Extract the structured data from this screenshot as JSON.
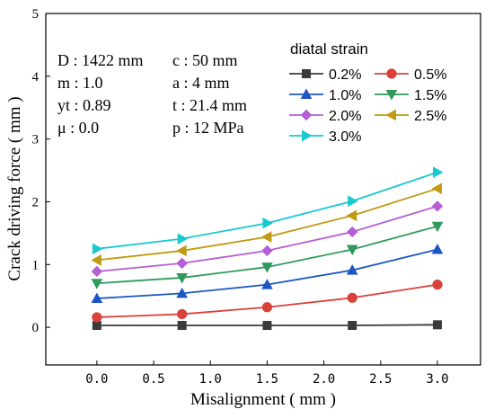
{
  "chart_data": {
    "type": "line",
    "xlabel": "Misalignment ( mm )",
    "ylabel": "Crack driving force ( mm )",
    "xlim": [
      -0.45,
      3.38
    ],
    "ylim": [
      -0.6,
      5
    ],
    "xticks": [
      0.0,
      0.5,
      1.0,
      1.5,
      2.0,
      2.5,
      3.0
    ],
    "xtick_labels": [
      "0.0",
      "0.5",
      "1.0",
      "1.5",
      "2.0",
      "2.5",
      "3.0"
    ],
    "yticks": [
      0,
      1,
      2,
      3,
      4,
      5
    ],
    "ytick_labels": [
      "0",
      "1",
      "2",
      "3",
      "4",
      "5"
    ],
    "x": [
      0.0,
      0.75,
      1.5,
      2.25,
      3.0
    ],
    "legend": {
      "title": "diatal strain",
      "placement": "top-right",
      "columns": 2
    },
    "parameters": [
      "D : 1422 mm",
      "m : 1.0",
      "yt : 0.89",
      "μ : 0.0",
      "c : 50 mm",
      "a : 4 mm",
      "t : 21.4 mm",
      "p : 12 MPa"
    ],
    "series": [
      {
        "name": "0.2%",
        "color": "#3b3b3b",
        "marker": "square",
        "values": [
          0.03,
          0.03,
          0.03,
          0.03,
          0.04
        ]
      },
      {
        "name": "0.5%",
        "color": "#d9413a",
        "marker": "circle",
        "values": [
          0.16,
          0.21,
          0.32,
          0.47,
          0.68
        ]
      },
      {
        "name": "1.0%",
        "color": "#1c56c4",
        "marker": "triangle-up",
        "values": [
          0.46,
          0.54,
          0.68,
          0.91,
          1.24
        ]
      },
      {
        "name": "1.5%",
        "color": "#2f9a5c",
        "marker": "triangle-down",
        "values": [
          0.7,
          0.79,
          0.96,
          1.24,
          1.61
        ]
      },
      {
        "name": "2.0%",
        "color": "#b55fd6",
        "marker": "diamond",
        "values": [
          0.89,
          1.02,
          1.22,
          1.52,
          1.93
        ]
      },
      {
        "name": "2.5%",
        "color": "#c09a12",
        "marker": "triangle-left",
        "values": [
          1.07,
          1.22,
          1.44,
          1.78,
          2.21
        ]
      },
      {
        "name": "3.0%",
        "color": "#18c9cf",
        "marker": "triangle-right",
        "values": [
          1.25,
          1.41,
          1.66,
          2.01,
          2.47
        ]
      }
    ]
  }
}
